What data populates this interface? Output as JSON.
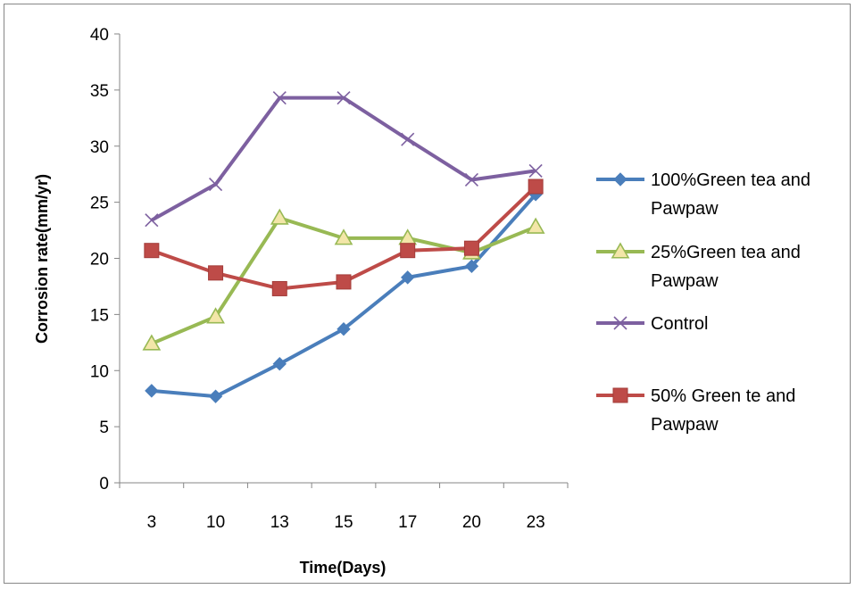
{
  "chart_data": {
    "type": "line",
    "title": "",
    "xlabel": "Time(Days)",
    "ylabel": "Corrosion rate(mm/yr)",
    "categories": [
      "3",
      "10",
      "13",
      "15",
      "17",
      "20",
      "23"
    ],
    "ylim": [
      0,
      40
    ],
    "yticks": [
      0,
      5,
      10,
      15,
      20,
      25,
      30,
      35,
      40
    ],
    "grid": false,
    "legend_position": "right",
    "series": [
      {
        "name_lines": [
          "100%Green tea and",
          "Pawpaw"
        ],
        "values": [
          8.2,
          7.7,
          10.6,
          13.7,
          18.3,
          19.3,
          25.7
        ],
        "color": "#4a7ebb",
        "marker": "diamond"
      },
      {
        "name_lines": [
          "25%Green tea and",
          "Pawpaw"
        ],
        "values": [
          12.4,
          14.8,
          23.6,
          21.8,
          21.8,
          20.5,
          22.8
        ],
        "color": "#98b954",
        "marker": "triangle"
      },
      {
        "name_lines": [
          "Control"
        ],
        "values": [
          23.4,
          26.6,
          34.3,
          34.3,
          30.6,
          27.0,
          27.8
        ],
        "color": "#7d60a0",
        "marker": "x"
      },
      {
        "name_lines": [
          "50% Green te and",
          "Pawpaw"
        ],
        "values": [
          20.7,
          18.7,
          17.3,
          17.9,
          20.7,
          20.9,
          26.4
        ],
        "color": "#be4b48",
        "marker": "square"
      }
    ]
  }
}
